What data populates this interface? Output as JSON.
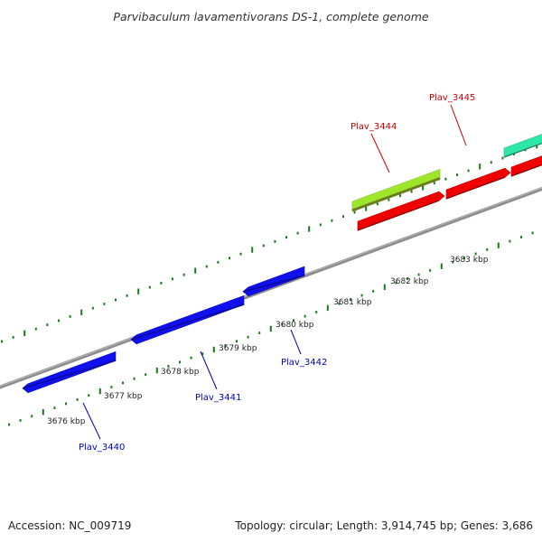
{
  "title": "Parvibaculum lavamentivorans DS-1, complete genome",
  "footer": {
    "accession": "Accession: NC_009719",
    "summary": "Topology: circular; Length: 3,914,745 bp; Genes: 3,686"
  },
  "colors": {
    "backbone": "#8c8c8c",
    "ticks": "#1a7a1a",
    "forward_label": "#cc0000",
    "reverse_label": "#0000bb"
  },
  "kbp_labels": [
    "3676 kbp",
    "3677 kbp",
    "3678 kbp",
    "3679 kbp",
    "3680 kbp",
    "3681 kbp",
    "3682 kbp",
    "3683 kbp"
  ],
  "genes": [
    {
      "label": "Plav_3440",
      "strand": "reverse",
      "color": "#1010ee"
    },
    {
      "label": "Plav_3441",
      "strand": "reverse",
      "color": "#1010ee"
    },
    {
      "label": "Plav_3442",
      "strand": "reverse",
      "color": "#1010ee"
    },
    {
      "label": "Plav_3444",
      "strand": "forward",
      "color": "#ee0000"
    },
    {
      "label": "Plav_3445",
      "strand": "forward",
      "color": "#ee0000"
    }
  ],
  "extra_features": [
    {
      "name": "lime-feature",
      "color": "#9ee62a"
    },
    {
      "name": "red-feature-right",
      "color": "#ee0000"
    },
    {
      "name": "teal-feature",
      "color": "#2ee6a8"
    }
  ]
}
